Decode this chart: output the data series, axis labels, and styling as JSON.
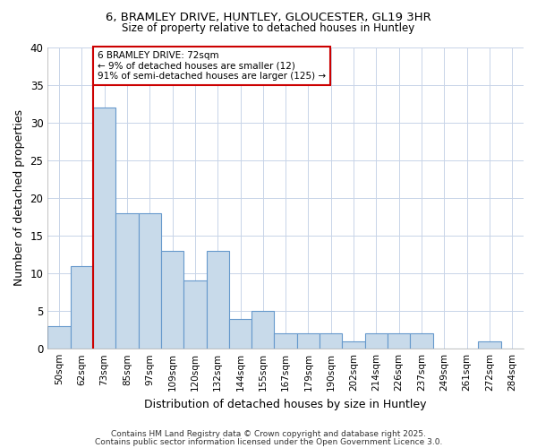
{
  "title1": "6, BRAMLEY DRIVE, HUNTLEY, GLOUCESTER, GL19 3HR",
  "title2": "Size of property relative to detached houses in Huntley",
  "xlabel": "Distribution of detached houses by size in Huntley",
  "ylabel": "Number of detached properties",
  "categories": [
    "50sqm",
    "62sqm",
    "73sqm",
    "85sqm",
    "97sqm",
    "109sqm",
    "120sqm",
    "132sqm",
    "144sqm",
    "155sqm",
    "167sqm",
    "179sqm",
    "190sqm",
    "202sqm",
    "214sqm",
    "226sqm",
    "237sqm",
    "249sqm",
    "261sqm",
    "272sqm",
    "284sqm"
  ],
  "values": [
    3,
    11,
    32,
    18,
    18,
    13,
    9,
    13,
    4,
    5,
    2,
    2,
    2,
    1,
    2,
    2,
    2,
    0,
    0,
    1,
    0
  ],
  "bar_color": "#c8daea",
  "bar_edgecolor": "#6699cc",
  "highlight_index": 2,
  "vline_color": "#cc0000",
  "annotation_text": "6 BRAMLEY DRIVE: 72sqm\n← 9% of detached houses are smaller (12)\n91% of semi-detached houses are larger (125) →",
  "annotation_box_facecolor": "#ffffff",
  "annotation_box_edgecolor": "#cc0000",
  "ylim": [
    0,
    40
  ],
  "yticks": [
    0,
    5,
    10,
    15,
    20,
    25,
    30,
    35,
    40
  ],
  "grid_color": "#c8d4e8",
  "background_color": "#ffffff",
  "footer1": "Contains HM Land Registry data © Crown copyright and database right 2025.",
  "footer2": "Contains public sector information licensed under the Open Government Licence 3.0."
}
